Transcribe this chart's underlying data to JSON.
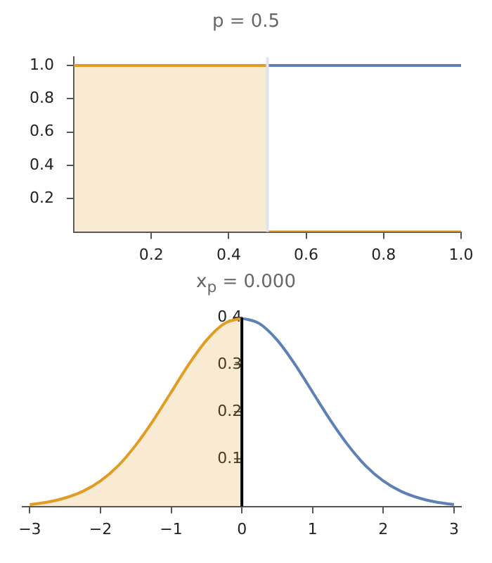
{
  "chart_data": [
    {
      "type": "line",
      "title": "p = 0.5",
      "series": [
        {
          "type": "line",
          "color": "#5e81b5",
          "x": [
            0.5,
            1
          ],
          "values": [
            1,
            1
          ]
        },
        {
          "type": "area",
          "color": "#e19c24",
          "x": [
            0,
            0.5
          ],
          "values": [
            1,
            1
          ]
        },
        {
          "type": "line",
          "color": "#e19c24",
          "x": [
            0.5,
            1
          ],
          "values": [
            0,
            0
          ]
        }
      ],
      "xlim": [
        0,
        1
      ],
      "ylim": [
        0,
        1.05
      ],
      "xticks": [
        0.2,
        0.4,
        0.6,
        0.8,
        {
          "value": 1,
          "label": "1.0"
        }
      ],
      "yticks": [
        0.2,
        0.4,
        0.6,
        0.8,
        {
          "value": 1,
          "label": "1.0"
        }
      ],
      "ref_lines": [
        {
          "axis": "x",
          "value": 0.5,
          "color": "#dde3f0"
        }
      ],
      "grid": false,
      "legend": false
    },
    {
      "type": "line",
      "title": "x$_{p}$ = 0.000",
      "series": [
        {
          "type": "line",
          "color": "#5e81b5",
          "x": [
            0,
            0.25,
            0.5,
            0.75,
            1,
            1.25,
            1.5,
            1.75,
            2,
            2.25,
            2.5,
            2.75,
            3
          ],
          "values": [
            0.399,
            0.387,
            0.352,
            0.301,
            0.242,
            0.183,
            0.13,
            0.086,
            0.054,
            0.032,
            0.018,
            0.009,
            0.004
          ]
        },
        {
          "type": "area",
          "color": "#e19c24",
          "x": [
            -3,
            -2.75,
            -2.5,
            -2.25,
            -2,
            -1.75,
            -1.5,
            -1.25,
            -1,
            -0.75,
            -0.5,
            -0.25,
            0
          ],
          "values": [
            0.004,
            0.009,
            0.018,
            0.032,
            0.054,
            0.086,
            0.13,
            0.183,
            0.242,
            0.301,
            0.352,
            0.387,
            0.399
          ]
        }
      ],
      "xlim": [
        -3.1,
        3.1
      ],
      "ylim": [
        0,
        0.4
      ],
      "xticks": [
        -3,
        -2,
        -1,
        0,
        1,
        2,
        3
      ],
      "yticks": [
        0.1,
        0.2,
        0.3,
        0.4
      ],
      "ref_lines": [
        {
          "axis": "x",
          "value": 0,
          "color": "#000000"
        }
      ],
      "grid": false,
      "legend": false
    }
  ]
}
